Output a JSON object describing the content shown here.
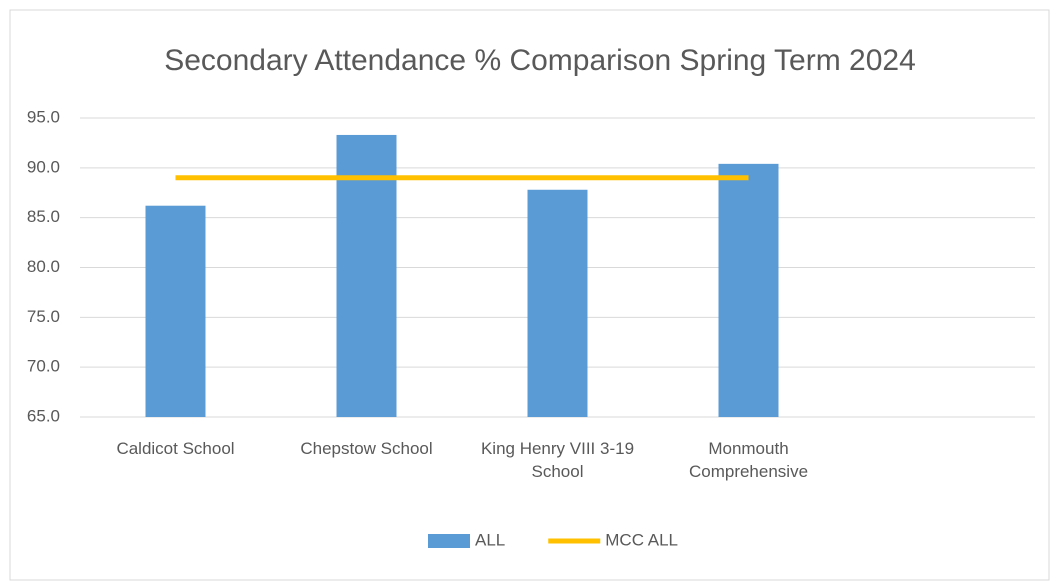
{
  "chart_data": {
    "type": "bar",
    "title": "Secondary Attendance % Comparison Spring Term 2024",
    "categories": [
      "Caldicot School",
      "Chepstow School",
      "King Henry VIII 3-19 School",
      "Monmouth Comprehensive",
      null
    ],
    "series": [
      {
        "name": "ALL",
        "type": "bar",
        "color": "#5b9bd5",
        "values": [
          86.2,
          93.3,
          87.8,
          90.4,
          null
        ]
      },
      {
        "name": "MCC ALL",
        "type": "line",
        "color": "#ffc000",
        "values": [
          89.0,
          89.0,
          89.0,
          89.0,
          null
        ]
      }
    ],
    "ylim": [
      65,
      95
    ],
    "yticks": [
      {
        "value": 65,
        "label": "65.0"
      },
      {
        "value": 70,
        "label": "70.0"
      },
      {
        "value": 75,
        "label": "75.0"
      },
      {
        "value": 80,
        "label": "80.0"
      },
      {
        "value": 85,
        "label": "85.0"
      },
      {
        "value": 90,
        "label": "90.0"
      },
      {
        "value": 95,
        "label": "95.0"
      }
    ],
    "grid": true,
    "legend": "bottom"
  }
}
